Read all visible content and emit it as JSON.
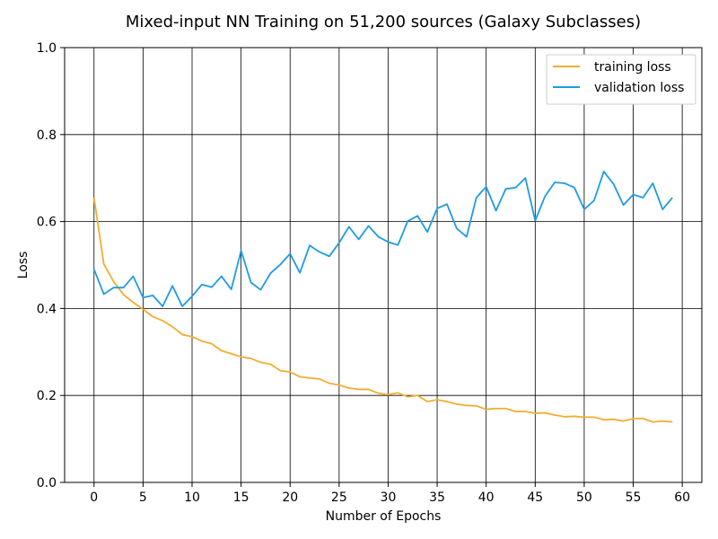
{
  "chart_data": {
    "type": "line",
    "title": "Mixed-input NN Training on 51,200 sources (Galaxy Subclasses)",
    "xlabel": "Number of Epochs",
    "ylabel": "Loss",
    "xlim": [
      -3,
      62
    ],
    "ylim": [
      0.0,
      1.0
    ],
    "xticks": [
      0,
      5,
      10,
      15,
      20,
      25,
      30,
      35,
      40,
      45,
      50,
      55,
      60
    ],
    "yticks": [
      0.0,
      0.2,
      0.4,
      0.6,
      0.8,
      1.0
    ],
    "xtick_labels": [
      "0",
      "5",
      "10",
      "15",
      "20",
      "25",
      "30",
      "35",
      "40",
      "45",
      "50",
      "55",
      "60"
    ],
    "ytick_labels": [
      "0.0",
      "0.2",
      "0.4",
      "0.6",
      "0.8",
      "1.0"
    ],
    "grid": true,
    "legend_position": "top-right",
    "series": [
      {
        "name": "training loss",
        "color": "#f0ae32",
        "x": [
          0,
          1,
          2,
          3,
          4,
          5,
          6,
          7,
          8,
          9,
          10,
          11,
          12,
          13,
          14,
          15,
          16,
          17,
          18,
          19,
          20,
          21,
          22,
          23,
          24,
          25,
          26,
          27,
          28,
          29,
          30,
          31,
          32,
          33,
          34,
          35,
          36,
          37,
          38,
          39,
          40,
          41,
          42,
          43,
          44,
          45,
          46,
          47,
          48,
          49,
          50,
          51,
          52,
          53,
          54,
          55,
          56,
          57,
          58,
          59
        ],
        "values": [
          0.655,
          0.502,
          0.462,
          0.432,
          0.414,
          0.398,
          0.381,
          0.372,
          0.358,
          0.34,
          0.335,
          0.325,
          0.319,
          0.303,
          0.296,
          0.289,
          0.285,
          0.276,
          0.272,
          0.257,
          0.254,
          0.243,
          0.24,
          0.238,
          0.228,
          0.224,
          0.217,
          0.214,
          0.214,
          0.205,
          0.202,
          0.206,
          0.197,
          0.2,
          0.186,
          0.19,
          0.186,
          0.18,
          0.177,
          0.176,
          0.168,
          0.17,
          0.17,
          0.163,
          0.163,
          0.159,
          0.16,
          0.155,
          0.151,
          0.152,
          0.15,
          0.15,
          0.144,
          0.145,
          0.141,
          0.147,
          0.147,
          0.139,
          0.141,
          0.139
        ]
      },
      {
        "name": "validation loss",
        "color": "#1e9be3",
        "x": [
          0,
          1,
          2,
          3,
          4,
          5,
          6,
          7,
          8,
          9,
          10,
          11,
          12,
          13,
          14,
          15,
          16,
          17,
          18,
          19,
          20,
          21,
          22,
          23,
          24,
          25,
          26,
          27,
          28,
          29,
          30,
          31,
          32,
          33,
          34,
          35,
          36,
          37,
          38,
          39,
          40,
          41,
          42,
          43,
          44,
          45,
          46,
          47,
          48,
          49,
          50,
          51,
          52,
          53,
          54,
          55,
          56,
          57,
          58,
          59
        ],
        "values": [
          0.49,
          0.433,
          0.448,
          0.448,
          0.474,
          0.425,
          0.43,
          0.405,
          0.452,
          0.405,
          0.428,
          0.455,
          0.449,
          0.474,
          0.444,
          0.533,
          0.46,
          0.443,
          0.481,
          0.501,
          0.526,
          0.482,
          0.545,
          0.53,
          0.52,
          0.551,
          0.588,
          0.559,
          0.59,
          0.565,
          0.553,
          0.546,
          0.601,
          0.613,
          0.576,
          0.63,
          0.64,
          0.584,
          0.565,
          0.655,
          0.68,
          0.625,
          0.675,
          0.678,
          0.7,
          0.602,
          0.658,
          0.69,
          0.688,
          0.678,
          0.628,
          0.648,
          0.715,
          0.686,
          0.638,
          0.662,
          0.655,
          0.688,
          0.628,
          0.655
        ]
      }
    ]
  }
}
